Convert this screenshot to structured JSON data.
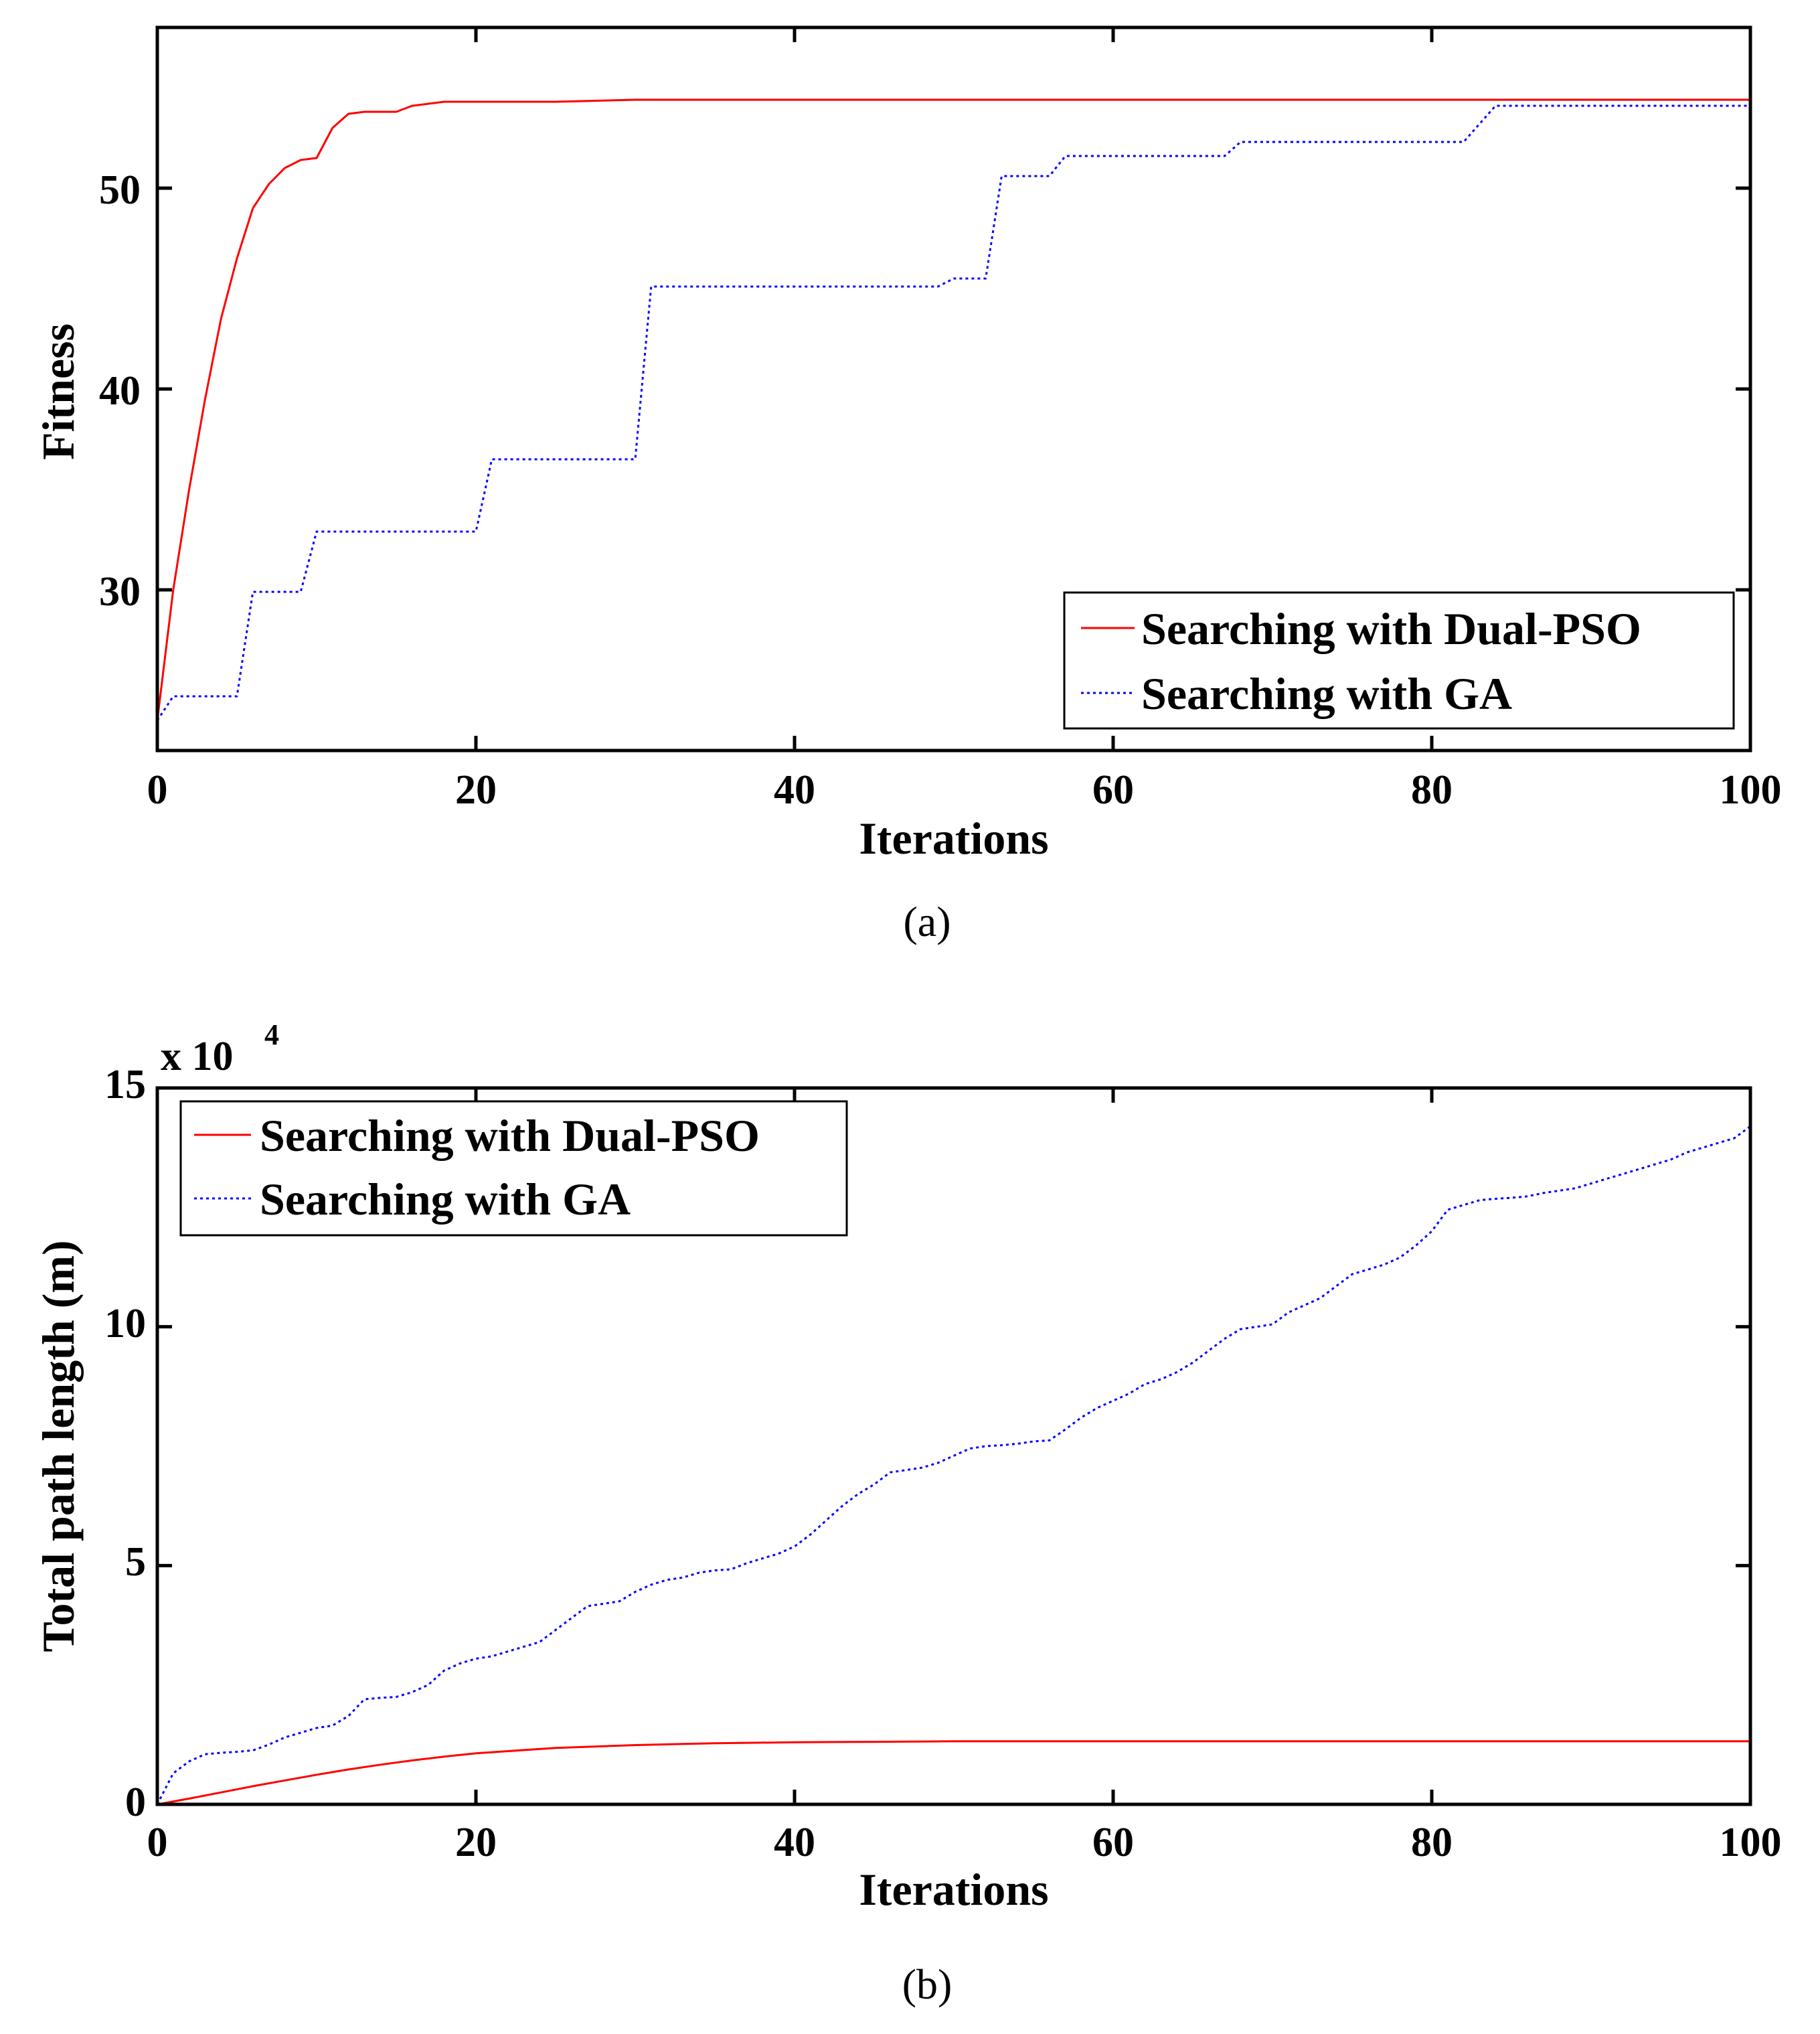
{
  "chart_data": [
    {
      "type": "line",
      "panel": "a",
      "caption": "(a)",
      "xlabel": "Iterations",
      "ylabel": "Fitness",
      "xlim": [
        0,
        100
      ],
      "ylim": [
        22,
        58
      ],
      "xticks": [
        0,
        20,
        40,
        60,
        80,
        100
      ],
      "yticks": [
        30,
        40,
        50
      ],
      "xtick_labels": [
        "0",
        "20",
        "40",
        "60",
        "80",
        "100"
      ],
      "ytick_labels": [
        "30",
        "40",
        "50"
      ],
      "exponent_label": "",
      "legend_position": "bottom-right",
      "series": [
        {
          "name": "Searching with Dual-PSO",
          "color": "#ff0000",
          "style": "solid",
          "x": [
            0,
            1,
            2,
            3,
            4,
            5,
            6,
            7,
            8,
            9,
            10,
            11,
            12,
            13,
            14,
            15,
            16,
            18,
            20,
            25,
            30,
            40,
            50,
            60,
            70,
            80,
            90,
            100
          ],
          "y": [
            23.5,
            30,
            35,
            39.5,
            43.5,
            46.5,
            49,
            50.2,
            51,
            51.4,
            51.5,
            53,
            53.7,
            53.8,
            53.8,
            53.8,
            54.1,
            54.3,
            54.3,
            54.3,
            54.4,
            54.4,
            54.4,
            54.4,
            54.4,
            54.4,
            54.4,
            54.4
          ]
        },
        {
          "name": "Searching with GA",
          "color": "#0000ff",
          "style": "dotted",
          "x": [
            0,
            1,
            2,
            4,
            5,
            6,
            7,
            9,
            10,
            13,
            16,
            20,
            21,
            25,
            28,
            30,
            31,
            35,
            40,
            45,
            49,
            50,
            52,
            53,
            56,
            57,
            60,
            64,
            67,
            68,
            72,
            76,
            80,
            82,
            84,
            88,
            92,
            96,
            100
          ],
          "y": [
            23.5,
            24.7,
            24.7,
            24.7,
            24.7,
            29.9,
            29.9,
            29.9,
            32.9,
            32.9,
            32.9,
            32.9,
            36.5,
            36.5,
            36.5,
            36.5,
            45.1,
            45.1,
            45.1,
            45.1,
            45.1,
            45.5,
            45.5,
            50.6,
            50.6,
            51.6,
            51.6,
            51.6,
            51.6,
            52.3,
            52.3,
            52.3,
            52.3,
            52.3,
            54.1,
            54.1,
            54.1,
            54.1,
            54.1
          ]
        }
      ]
    },
    {
      "type": "line",
      "panel": "b",
      "caption": "(b)",
      "xlabel": "Iterations",
      "ylabel": "Total path length (m)",
      "xlim": [
        0,
        100
      ],
      "ylim": [
        0,
        150000
      ],
      "xticks": [
        0,
        20,
        40,
        60,
        80,
        100
      ],
      "yticks": [
        0,
        50000,
        100000,
        150000
      ],
      "xtick_labels": [
        "0",
        "20",
        "40",
        "60",
        "80",
        "100"
      ],
      "ytick_labels": [
        "0",
        "5",
        "10",
        "15"
      ],
      "exponent_label": "x 10",
      "exponent_power": "4",
      "legend_position": "top-left",
      "series": [
        {
          "name": "Searching with Dual-PSO",
          "color": "#ff0000",
          "style": "solid",
          "x": [
            0,
            2,
            4,
            6,
            8,
            10,
            12,
            14,
            16,
            18,
            20,
            25,
            30,
            35,
            40,
            45,
            50,
            60,
            70,
            80,
            90,
            100
          ],
          "y": [
            0,
            1200,
            2500,
            3800,
            5000,
            6200,
            7300,
            8300,
            9200,
            10000,
            10700,
            11800,
            12400,
            12800,
            13000,
            13100,
            13200,
            13200,
            13200,
            13200,
            13200,
            13200
          ],
          "y_units": "m"
        },
        {
          "name": "Searching with GA",
          "color": "#0000ff",
          "style": "dotted",
          "x": [
            0,
            1,
            2,
            3,
            4,
            5,
            6,
            7,
            8,
            9,
            10,
            11,
            12,
            13,
            14,
            15,
            16,
            17,
            18,
            19,
            20,
            21,
            22,
            23,
            24,
            25,
            26,
            27,
            28,
            29,
            30,
            31,
            32,
            33,
            34,
            35,
            36,
            37,
            38,
            39,
            40,
            41,
            42,
            43,
            44,
            45,
            46,
            47,
            48,
            49,
            50,
            51,
            52,
            53,
            54,
            55,
            56,
            57,
            58,
            59,
            60,
            61,
            62,
            63,
            64,
            65,
            66,
            67,
            68,
            69,
            70,
            71,
            72,
            73,
            74,
            75,
            76,
            77,
            78,
            79,
            80,
            81,
            82,
            83,
            84,
            85,
            86,
            87,
            88,
            89,
            90,
            91,
            92,
            93,
            94,
            95,
            96,
            97,
            98,
            99,
            100
          ],
          "y": [
            0,
            6500,
            9000,
            10500,
            10800,
            11000,
            11300,
            12500,
            14000,
            15000,
            16000,
            16500,
            18500,
            22000,
            22300,
            22500,
            23500,
            25000,
            28000,
            29500,
            30500,
            31000,
            32000,
            33000,
            34000,
            36500,
            39000,
            41500,
            42000,
            42500,
            44500,
            46000,
            47000,
            47500,
            48500,
            49000,
            49200,
            50500,
            51500,
            52500,
            54000,
            56500,
            59500,
            62500,
            65000,
            67000,
            69500,
            70000,
            70500,
            71500,
            73000,
            74500,
            75000,
            75200,
            75500,
            76000,
            76200,
            78500,
            81000,
            83000,
            84500,
            86000,
            88000,
            89000,
            90500,
            92500,
            95000,
            97500,
            99500,
            100000,
            100500,
            103000,
            104500,
            106000,
            108500,
            111000,
            112000,
            113000,
            114500,
            117000,
            120000,
            124500,
            125500,
            126500,
            126800,
            127000,
            127300,
            128000,
            128500,
            129000,
            130000,
            131000,
            132000,
            133000,
            134000,
            135000,
            136500,
            137500,
            138500,
            139500,
            142000
          ],
          "y_units": "m"
        }
      ]
    }
  ]
}
